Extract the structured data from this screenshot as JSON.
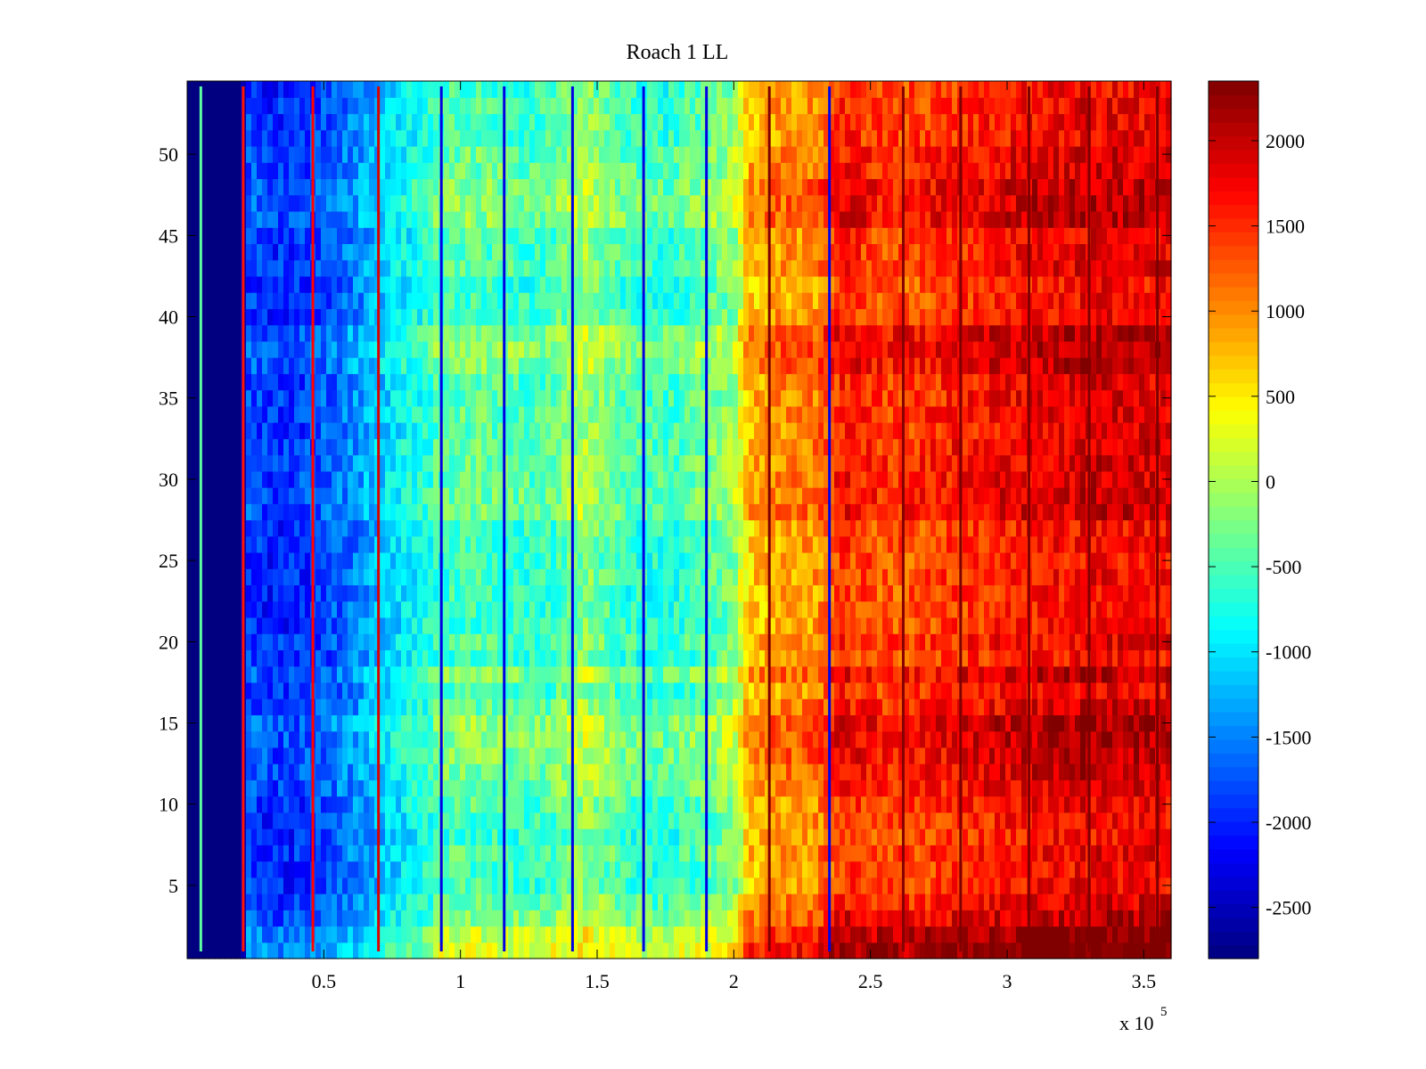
{
  "chart_data": {
    "type": "heatmap",
    "title": "Roach 1 LL",
    "xlabel": "",
    "ylabel": "",
    "x_range": [
      0,
      360000
    ],
    "y_range": [
      0.5,
      54.5
    ],
    "x_ticks": [
      50000,
      100000,
      150000,
      200000,
      250000,
      300000,
      350000
    ],
    "x_tick_labels": [
      "0.5",
      "1",
      "1.5",
      "2",
      "2.5",
      "3",
      "3.5"
    ],
    "x_exponent_label": "x 10",
    "x_exponent_power": "5",
    "y_ticks": [
      5,
      10,
      15,
      20,
      25,
      30,
      35,
      40,
      45,
      50
    ],
    "y_tick_labels": [
      "5",
      "10",
      "15",
      "20",
      "25",
      "30",
      "35",
      "40",
      "45",
      "50"
    ],
    "rows": 54,
    "colormap": "jet",
    "colorbar": {
      "range": [
        -2800,
        2350
      ],
      "ticks": [
        -2500,
        -2000,
        -1500,
        -1000,
        -500,
        0,
        500,
        1000,
        1500,
        2000
      ],
      "tick_labels": [
        "-2500",
        "-2000",
        "-1500",
        "-1000",
        "-500",
        "0",
        "500",
        "1000",
        "1500",
        "2000"
      ]
    },
    "column_profile": {
      "x": [
        0,
        4000,
        5000,
        20000,
        22000,
        30000,
        45000,
        60000,
        75000,
        90000,
        100000,
        115000,
        130000,
        145000,
        160000,
        175000,
        190000,
        200000,
        205000,
        215000,
        230000,
        240000,
        255000,
        270000,
        300000,
        330000,
        360000
      ],
      "values": [
        -2800,
        -2800,
        -2800,
        -2800,
        -1850,
        -2050,
        -1950,
        -1600,
        -1100,
        -700,
        -550,
        -600,
        -700,
        -200,
        -650,
        -750,
        -500,
        -300,
        600,
        800,
        900,
        1450,
        1250,
        1300,
        1550,
        1700,
        1650
      ]
    },
    "row_offsets": [
      850,
      700,
      420,
      220,
      80,
      40,
      130,
      0,
      60,
      120,
      260,
      320,
      380,
      420,
      460,
      230,
      80,
      380,
      0,
      120,
      0,
      0,
      0,
      40,
      0,
      40,
      20,
      300,
      280,
      250,
      230,
      220,
      170,
      180,
      180,
      160,
      380,
      470,
      420,
      90,
      20,
      0,
      170,
      110,
      80,
      400,
      380,
      360,
      240,
      220,
      100,
      100,
      120,
      40
    ],
    "vertical_lines": [
      {
        "x": 5000,
        "value": -400
      },
      {
        "x": 20500,
        "value": 1600
      },
      {
        "x": 46000,
        "value": 1700
      },
      {
        "x": 70000,
        "value": 1900
      },
      {
        "x": 93000,
        "value": -2300
      },
      {
        "x": 116000,
        "value": -2300
      },
      {
        "x": 141000,
        "value": -2300
      },
      {
        "x": 167000,
        "value": -2300
      },
      {
        "x": 190000,
        "value": -2300
      },
      {
        "x": 213000,
        "value": 2400
      },
      {
        "x": 235000,
        "value": -2300
      },
      {
        "x": 262000,
        "value": 2300
      },
      {
        "x": 283000,
        "value": 2350
      },
      {
        "x": 308000,
        "value": 2350
      },
      {
        "x": 330000,
        "value": 2350
      },
      {
        "x": 355000,
        "value": 2350
      }
    ]
  }
}
